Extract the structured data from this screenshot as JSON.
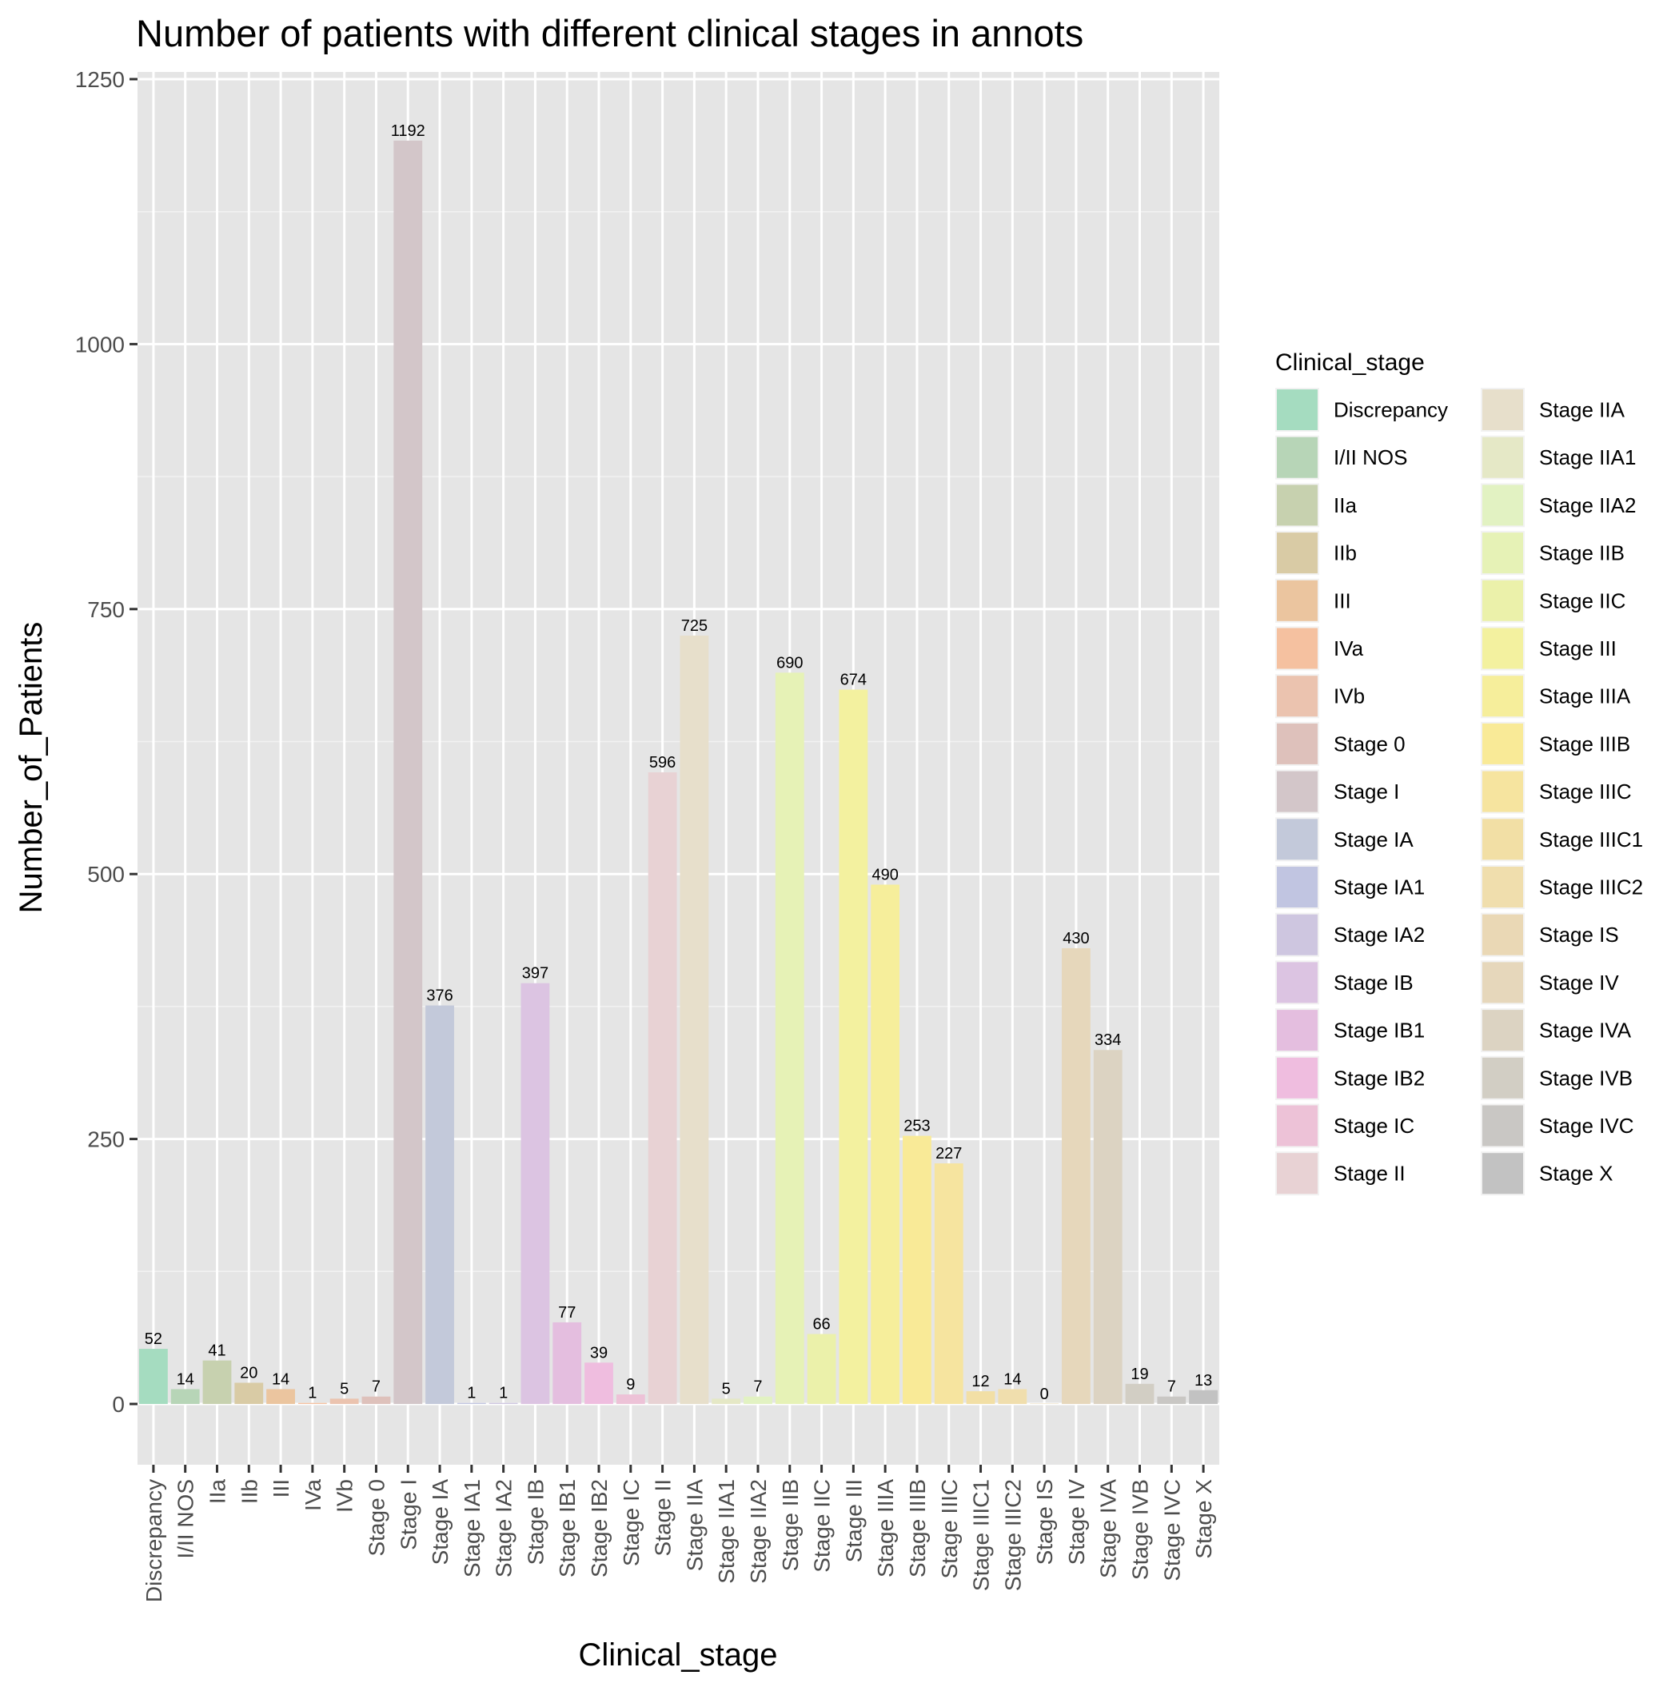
{
  "chart_data": {
    "type": "bar",
    "title": "Number of patients with different clinical stages in annots",
    "xlabel": "Clinical_stage",
    "ylabel": "Number_of_Patients",
    "ylim": [
      -125,
      1300
    ],
    "yticks": [
      0,
      250,
      500,
      750,
      1000,
      1250
    ],
    "grid": true,
    "legend_position": "right",
    "legend_title": "Clinical_stage",
    "categories": [
      "Discrepancy",
      "I/II NOS",
      "IIa",
      "IIb",
      "III",
      "IVa",
      "IVb",
      "Stage 0",
      "Stage I",
      "Stage IA",
      "Stage IA1",
      "Stage IA2",
      "Stage IB",
      "Stage IB1",
      "Stage IB2",
      "Stage IC",
      "Stage II",
      "Stage IIA",
      "Stage IIA1",
      "Stage IIA2",
      "Stage IIB",
      "Stage IIC",
      "Stage III",
      "Stage IIIA",
      "Stage IIIB",
      "Stage IIIC",
      "Stage IIIC1",
      "Stage IIIC2",
      "Stage IS",
      "Stage IV",
      "Stage IVA",
      "Stage IVB",
      "Stage IVC",
      "Stage X"
    ],
    "values": [
      52,
      14,
      41,
      20,
      14,
      1,
      5,
      7,
      1192,
      376,
      1,
      1,
      397,
      77,
      39,
      9,
      596,
      725,
      5,
      7,
      690,
      66,
      674,
      490,
      253,
      227,
      12,
      14,
      0,
      430,
      334,
      19,
      7,
      13
    ],
    "colors": [
      "#A5DCC0",
      "#B7D5B7",
      "#C7D1AF",
      "#D9CBA5",
      "#EBC59F",
      "#F5C1A0",
      "#EBC3AF",
      "#DEC1BB",
      "#D3C6C9",
      "#C3C9DA",
      "#C1C5E1",
      "#CEC6E0",
      "#DCC4E2",
      "#E4BEDF",
      "#EFBDDF",
      "#EDC2D7",
      "#E8D2D4",
      "#E7DFCB",
      "#E5E8C6",
      "#E2F2C2",
      "#E6F2B6",
      "#EBF1AA",
      "#F3F19F",
      "#F6EE9B",
      "#F9EA97",
      "#F6E49F",
      "#F2DFA5",
      "#F0DEAD",
      "#EAD8B5",
      "#E6D7BB",
      "#DCD3C2",
      "#D2CEC4",
      "#C9C7C4",
      "#C2C2C2"
    ]
  }
}
